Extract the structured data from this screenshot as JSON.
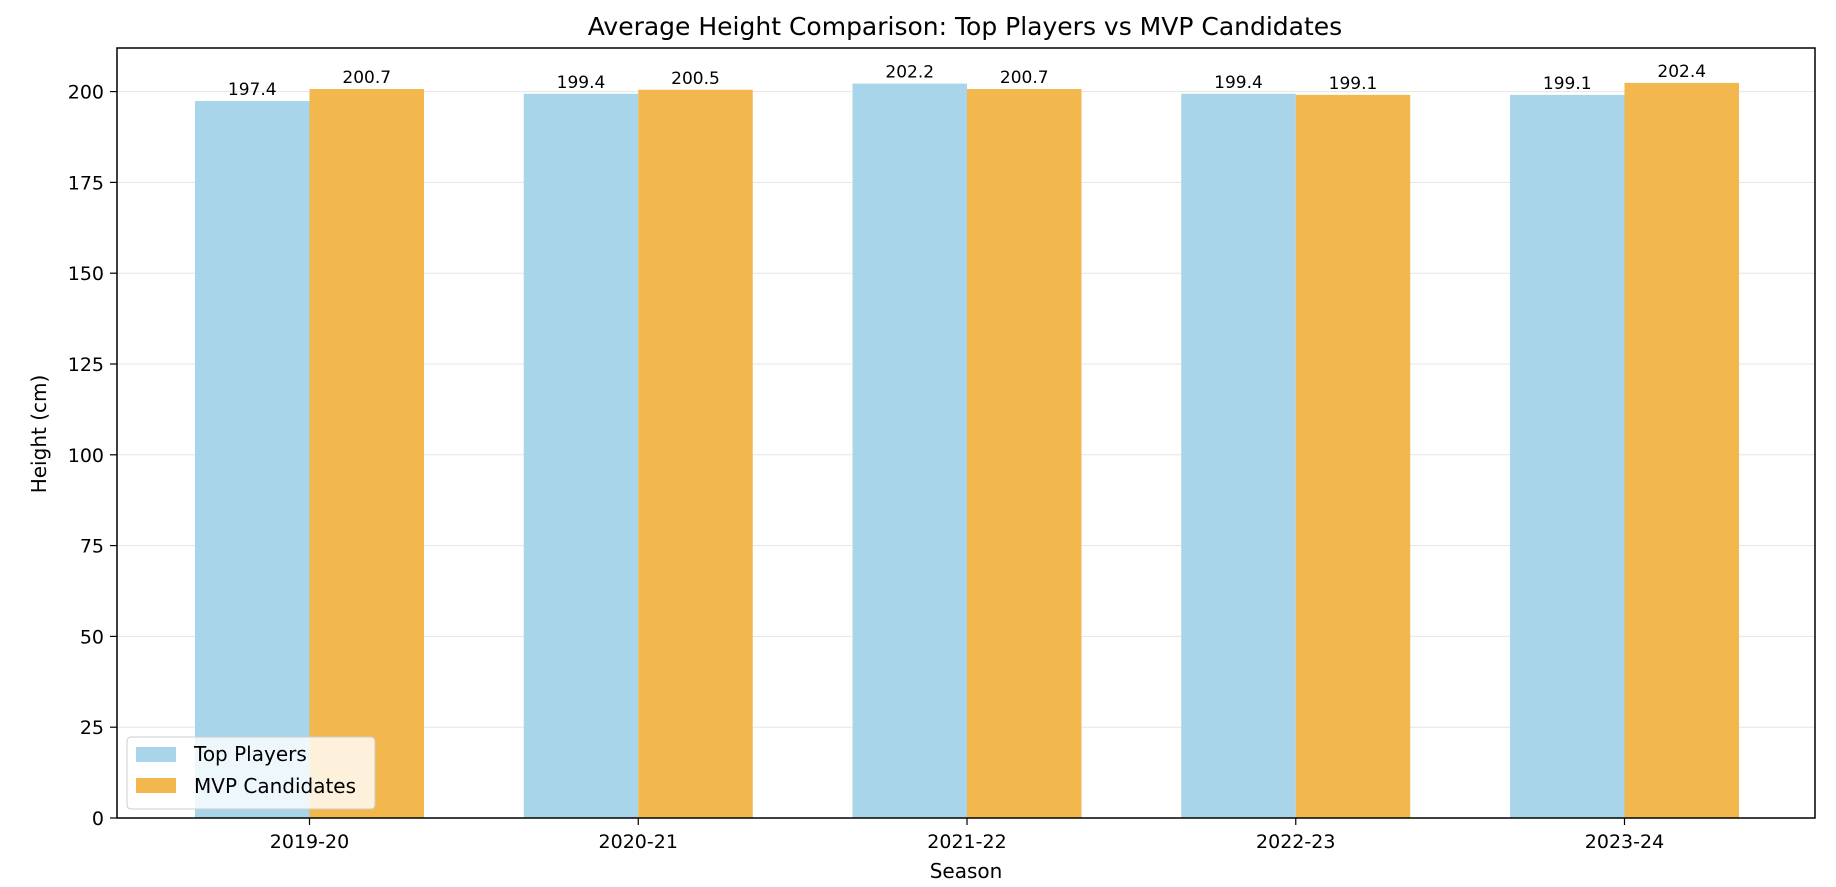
{
  "chart_data": {
    "type": "bar",
    "title": "Average Height Comparison: Top Players vs MVP Candidates",
    "xlabel": "Season",
    "ylabel": "Height (cm)",
    "categories": [
      "2019-20",
      "2020-21",
      "2021-22",
      "2022-23",
      "2023-24"
    ],
    "ylim": [
      0,
      212
    ],
    "yticks": [
      0,
      25,
      50,
      75,
      100,
      125,
      150,
      175,
      200
    ],
    "grid": true,
    "legend_position": "bottom-left",
    "series": [
      {
        "name": "Top Players",
        "color": "#a8d5ea",
        "values": [
          197.4,
          199.4,
          202.2,
          199.4,
          199.1
        ],
        "labels": [
          "197.4",
          "199.4",
          "202.2",
          "199.4",
          "199.1"
        ]
      },
      {
        "name": "MVP Candidates",
        "color": "#f2b84d",
        "values": [
          200.7,
          200.5,
          200.7,
          199.1,
          202.4
        ],
        "labels": [
          "200.7",
          "200.5",
          "200.7",
          "199.1",
          "202.4"
        ]
      }
    ]
  }
}
